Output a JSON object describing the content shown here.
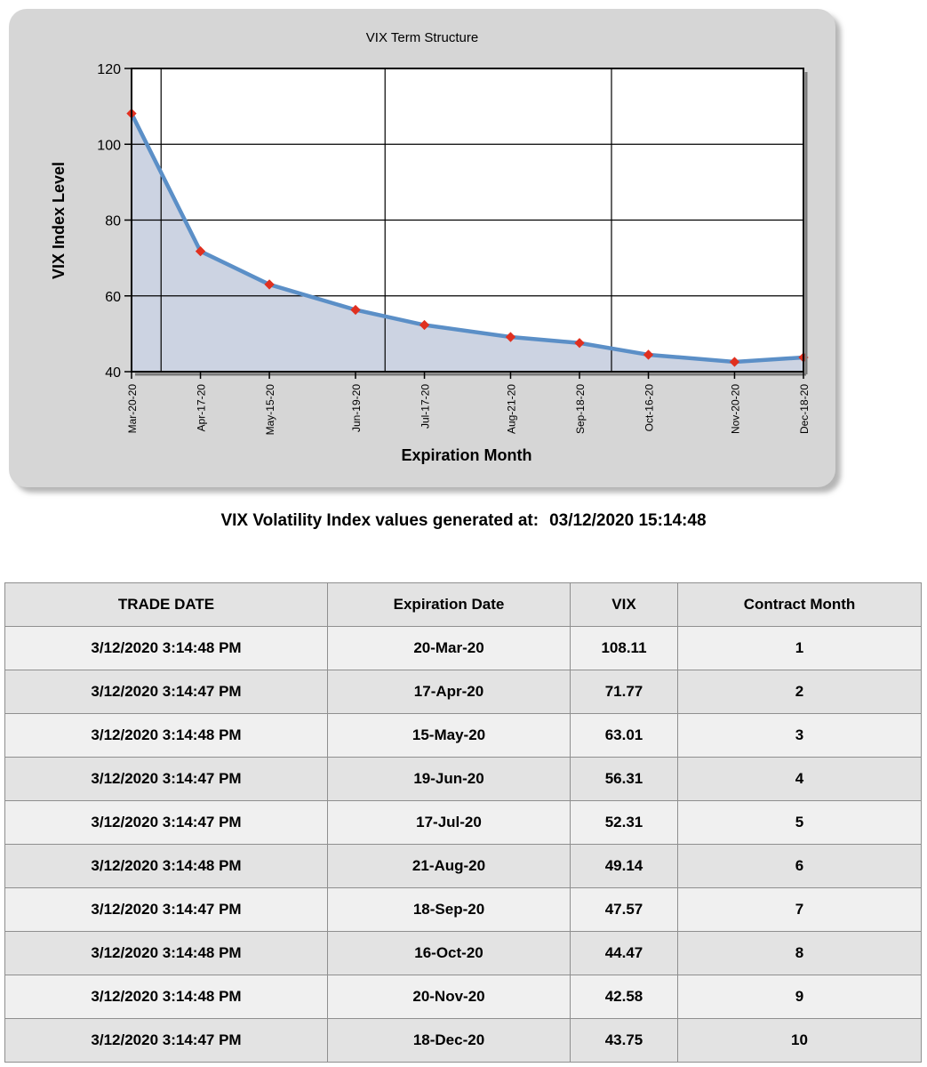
{
  "chart_data": {
    "type": "area",
    "title": "VIX Term Structure",
    "xlabel": "Expiration Month",
    "ylabel": "VIX Index Level",
    "x": [
      "2020-03-20",
      "2020-04-17",
      "2020-05-15",
      "2020-06-19",
      "2020-07-17",
      "2020-08-21",
      "2020-09-18",
      "2020-10-16",
      "2020-11-20",
      "2020-12-18"
    ],
    "tick_labels": [
      "Mar-20-20",
      "Apr-17-20",
      "May-15-20",
      "Jun-19-20",
      "Jul-17-20",
      "Aug-21-20",
      "Sep-18-20",
      "Oct-16-20",
      "Nov-20-20",
      "Dec-18-20"
    ],
    "values": [
      108.11,
      71.77,
      63.01,
      56.31,
      52.31,
      49.14,
      47.57,
      44.47,
      42.58,
      43.75
    ],
    "ylim": [
      40,
      120
    ],
    "yticks": [
      40,
      60,
      80,
      100,
      120
    ],
    "grid": true,
    "line_color": "#5b8fc7",
    "fill_color": "#ccd3e2",
    "marker_color": "#e03020"
  },
  "caption": {
    "label": "VIX Volatility Index values generated at:",
    "timestamp": "03/12/2020 15:14:48"
  },
  "table": {
    "headers": [
      "TRADE DATE",
      "Expiration Date",
      "VIX",
      "Contract Month"
    ],
    "rows": [
      [
        "3/12/2020 3:14:48 PM",
        "20-Mar-20",
        "108.11",
        "1"
      ],
      [
        "3/12/2020 3:14:47 PM",
        "17-Apr-20",
        "71.77",
        "2"
      ],
      [
        "3/12/2020 3:14:48 PM",
        "15-May-20",
        "63.01",
        "3"
      ],
      [
        "3/12/2020 3:14:47 PM",
        "19-Jun-20",
        "56.31",
        "4"
      ],
      [
        "3/12/2020 3:14:47 PM",
        "17-Jul-20",
        "52.31",
        "5"
      ],
      [
        "3/12/2020 3:14:48 PM",
        "21-Aug-20",
        "49.14",
        "6"
      ],
      [
        "3/12/2020 3:14:47 PM",
        "18-Sep-20",
        "47.57",
        "7"
      ],
      [
        "3/12/2020 3:14:48 PM",
        "16-Oct-20",
        "44.47",
        "8"
      ],
      [
        "3/12/2020 3:14:48 PM",
        "20-Nov-20",
        "42.58",
        "9"
      ],
      [
        "3/12/2020 3:14:47 PM",
        "18-Dec-20",
        "43.75",
        "10"
      ]
    ]
  }
}
